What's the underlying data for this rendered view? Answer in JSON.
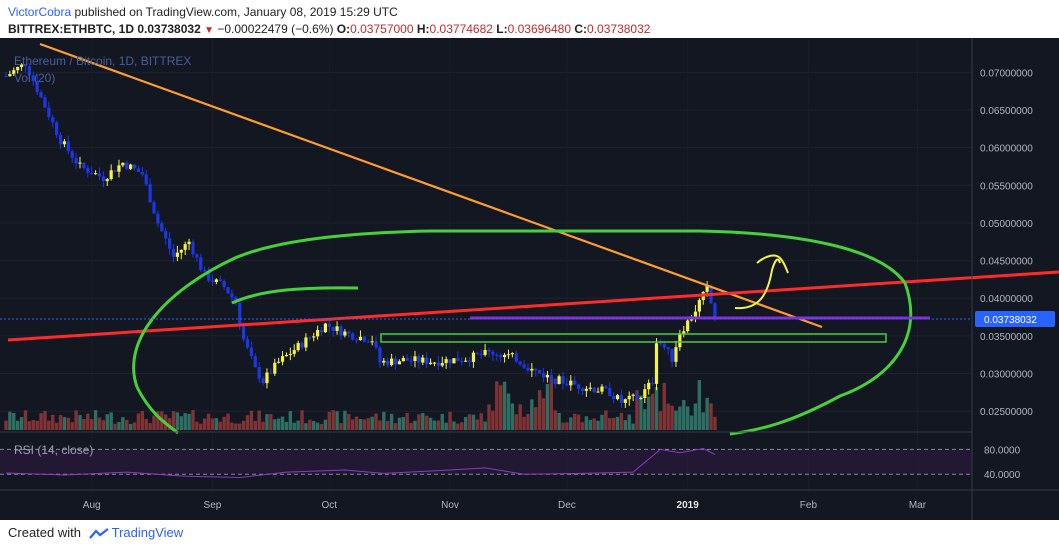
{
  "header": {
    "author": "VictorCobra",
    "published": "published on TradingView.com, January 08, 2019 15:29 UTC",
    "symbol": "BITTREX:ETHBTC, 1D",
    "last": "0.03738032",
    "change": "−0.00022479 (−0.6%)",
    "o_label": "O:",
    "o": "0.03757000",
    "h_label": "H:",
    "h": "0.03774682",
    "l_label": "L:",
    "l": "0.03696480",
    "c_label": "C:",
    "c": "0.03738032"
  },
  "footer": {
    "created_with": "Created with",
    "brand": "TradingView"
  },
  "colors": {
    "background": "#131722",
    "up": "#f5f346",
    "down": "#1c37e6",
    "vol_up": "#2e6f63",
    "vol_down": "#7f3334",
    "trend_orange": "#ff9d2e",
    "trend_red": "#ff2a2a",
    "ellipse_green": "#46d03a",
    "purple_line": "#8a2be2",
    "rsi_line": "#8c3bc4",
    "rsi_band": "#2a1a3a"
  },
  "chart_data": {
    "type": "candlestick",
    "title": "Ethereum / Bitcoin, 1D, BITTREX",
    "indicator_label": "Vol (20)",
    "price_axis_ticks": [
      "0.07000000",
      "0.06500000",
      "0.06000000",
      "0.05500000",
      "0.05000000",
      "0.04500000",
      "0.04000000",
      "0.03500000",
      "0.03000000",
      "0.02500000"
    ],
    "price_range": [
      0.0225,
      0.0735
    ],
    "last_price_label": "0.03738032",
    "time_axis_labels": [
      "Aug",
      "Sep",
      "Oct",
      "Nov",
      "Dec",
      "2019",
      "Feb",
      "Mar"
    ],
    "x_range": [
      "2018-07-10",
      "2019-03-15"
    ],
    "close_series": [
      {
        "date": "2018-07-10",
        "close": 0.0695
      },
      {
        "date": "2018-07-15",
        "close": 0.0712
      },
      {
        "date": "2018-07-20",
        "close": 0.0655
      },
      {
        "date": "2018-07-24",
        "close": 0.061
      },
      {
        "date": "2018-07-29",
        "close": 0.0575
      },
      {
        "date": "2018-08-04",
        "close": 0.056
      },
      {
        "date": "2018-08-09",
        "close": 0.058
      },
      {
        "date": "2018-08-14",
        "close": 0.0565
      },
      {
        "date": "2018-08-18",
        "close": 0.05
      },
      {
        "date": "2018-08-22",
        "close": 0.0455
      },
      {
        "date": "2018-08-26",
        "close": 0.0475
      },
      {
        "date": "2018-08-30",
        "close": 0.043
      },
      {
        "date": "2018-09-04",
        "close": 0.0415
      },
      {
        "date": "2018-09-07",
        "close": 0.0395
      },
      {
        "date": "2018-09-09",
        "close": 0.0345
      },
      {
        "date": "2018-09-12",
        "close": 0.0305
      },
      {
        "date": "2018-09-14",
        "close": 0.029
      },
      {
        "date": "2018-09-18",
        "close": 0.0315
      },
      {
        "date": "2018-09-24",
        "close": 0.034
      },
      {
        "date": "2018-09-30",
        "close": 0.0365
      },
      {
        "date": "2018-10-06",
        "close": 0.0352
      },
      {
        "date": "2018-10-12",
        "close": 0.0345
      },
      {
        "date": "2018-10-14",
        "close": 0.0315
      },
      {
        "date": "2018-10-20",
        "close": 0.0318
      },
      {
        "date": "2018-10-28",
        "close": 0.0316
      },
      {
        "date": "2018-11-05",
        "close": 0.032
      },
      {
        "date": "2018-11-12",
        "close": 0.0328
      },
      {
        "date": "2018-11-18",
        "close": 0.032
      },
      {
        "date": "2018-11-22",
        "close": 0.0305
      },
      {
        "date": "2018-11-28",
        "close": 0.0292
      },
      {
        "date": "2018-12-03",
        "close": 0.0285
      },
      {
        "date": "2018-12-08",
        "close": 0.028
      },
      {
        "date": "2018-12-12",
        "close": 0.0275
      },
      {
        "date": "2018-12-15",
        "close": 0.0262
      },
      {
        "date": "2018-12-20",
        "close": 0.027
      },
      {
        "date": "2018-12-23",
        "close": 0.029
      },
      {
        "date": "2018-12-24",
        "close": 0.0345
      },
      {
        "date": "2018-12-26",
        "close": 0.0335
      },
      {
        "date": "2018-12-28",
        "close": 0.032
      },
      {
        "date": "2018-12-30",
        "close": 0.0355
      },
      {
        "date": "2019-01-02",
        "close": 0.0375
      },
      {
        "date": "2019-01-04",
        "close": 0.0395
      },
      {
        "date": "2019-01-06",
        "close": 0.0412
      },
      {
        "date": "2019-01-08",
        "close": 0.0374
      }
    ],
    "rsi": {
      "label": "RSI (14, close)",
      "axis_ticks": [
        "80.0000",
        "40.0000"
      ],
      "series": [
        {
          "date": "2018-07-10",
          "value": 43
        },
        {
          "date": "2018-07-25",
          "value": 38
        },
        {
          "date": "2018-08-10",
          "value": 45
        },
        {
          "date": "2018-08-25",
          "value": 35
        },
        {
          "date": "2018-09-08",
          "value": 32
        },
        {
          "date": "2018-09-20",
          "value": 45
        },
        {
          "date": "2018-10-05",
          "value": 50
        },
        {
          "date": "2018-10-15",
          "value": 42
        },
        {
          "date": "2018-11-01",
          "value": 50
        },
        {
          "date": "2018-11-10",
          "value": 55
        },
        {
          "date": "2018-11-20",
          "value": 40
        },
        {
          "date": "2018-12-05",
          "value": 42
        },
        {
          "date": "2018-12-18",
          "value": 45
        },
        {
          "date": "2018-12-25",
          "value": 80
        },
        {
          "date": "2018-12-30",
          "value": 72
        },
        {
          "date": "2019-01-05",
          "value": 82
        },
        {
          "date": "2019-01-08",
          "value": 68
        }
      ]
    }
  }
}
